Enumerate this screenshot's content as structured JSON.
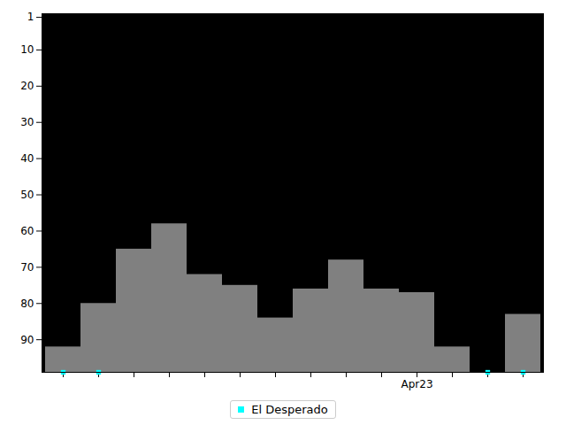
{
  "chart_data": {
    "type": "bar",
    "categories": [
      null,
      null,
      null,
      null,
      null,
      null,
      null,
      null,
      null,
      null,
      "Apr23",
      null,
      null,
      null
    ],
    "values": [
      92,
      80,
      65,
      58,
      72,
      75,
      84,
      76,
      68,
      76,
      77,
      92,
      null,
      83
    ],
    "color": "#808080",
    "series": [
      {
        "name": "El Desperado",
        "type": "scatter",
        "color": "#00ffff",
        "marker": "square",
        "values": [
          99,
          99,
          null,
          null,
          null,
          null,
          null,
          null,
          null,
          null,
          null,
          null,
          99,
          99
        ]
      }
    ],
    "ylim": [
      99,
      0
    ],
    "yticks": [
      1,
      10,
      20,
      30,
      40,
      50,
      60,
      70,
      80,
      90
    ],
    "legend": "lower center",
    "grid": false
  }
}
